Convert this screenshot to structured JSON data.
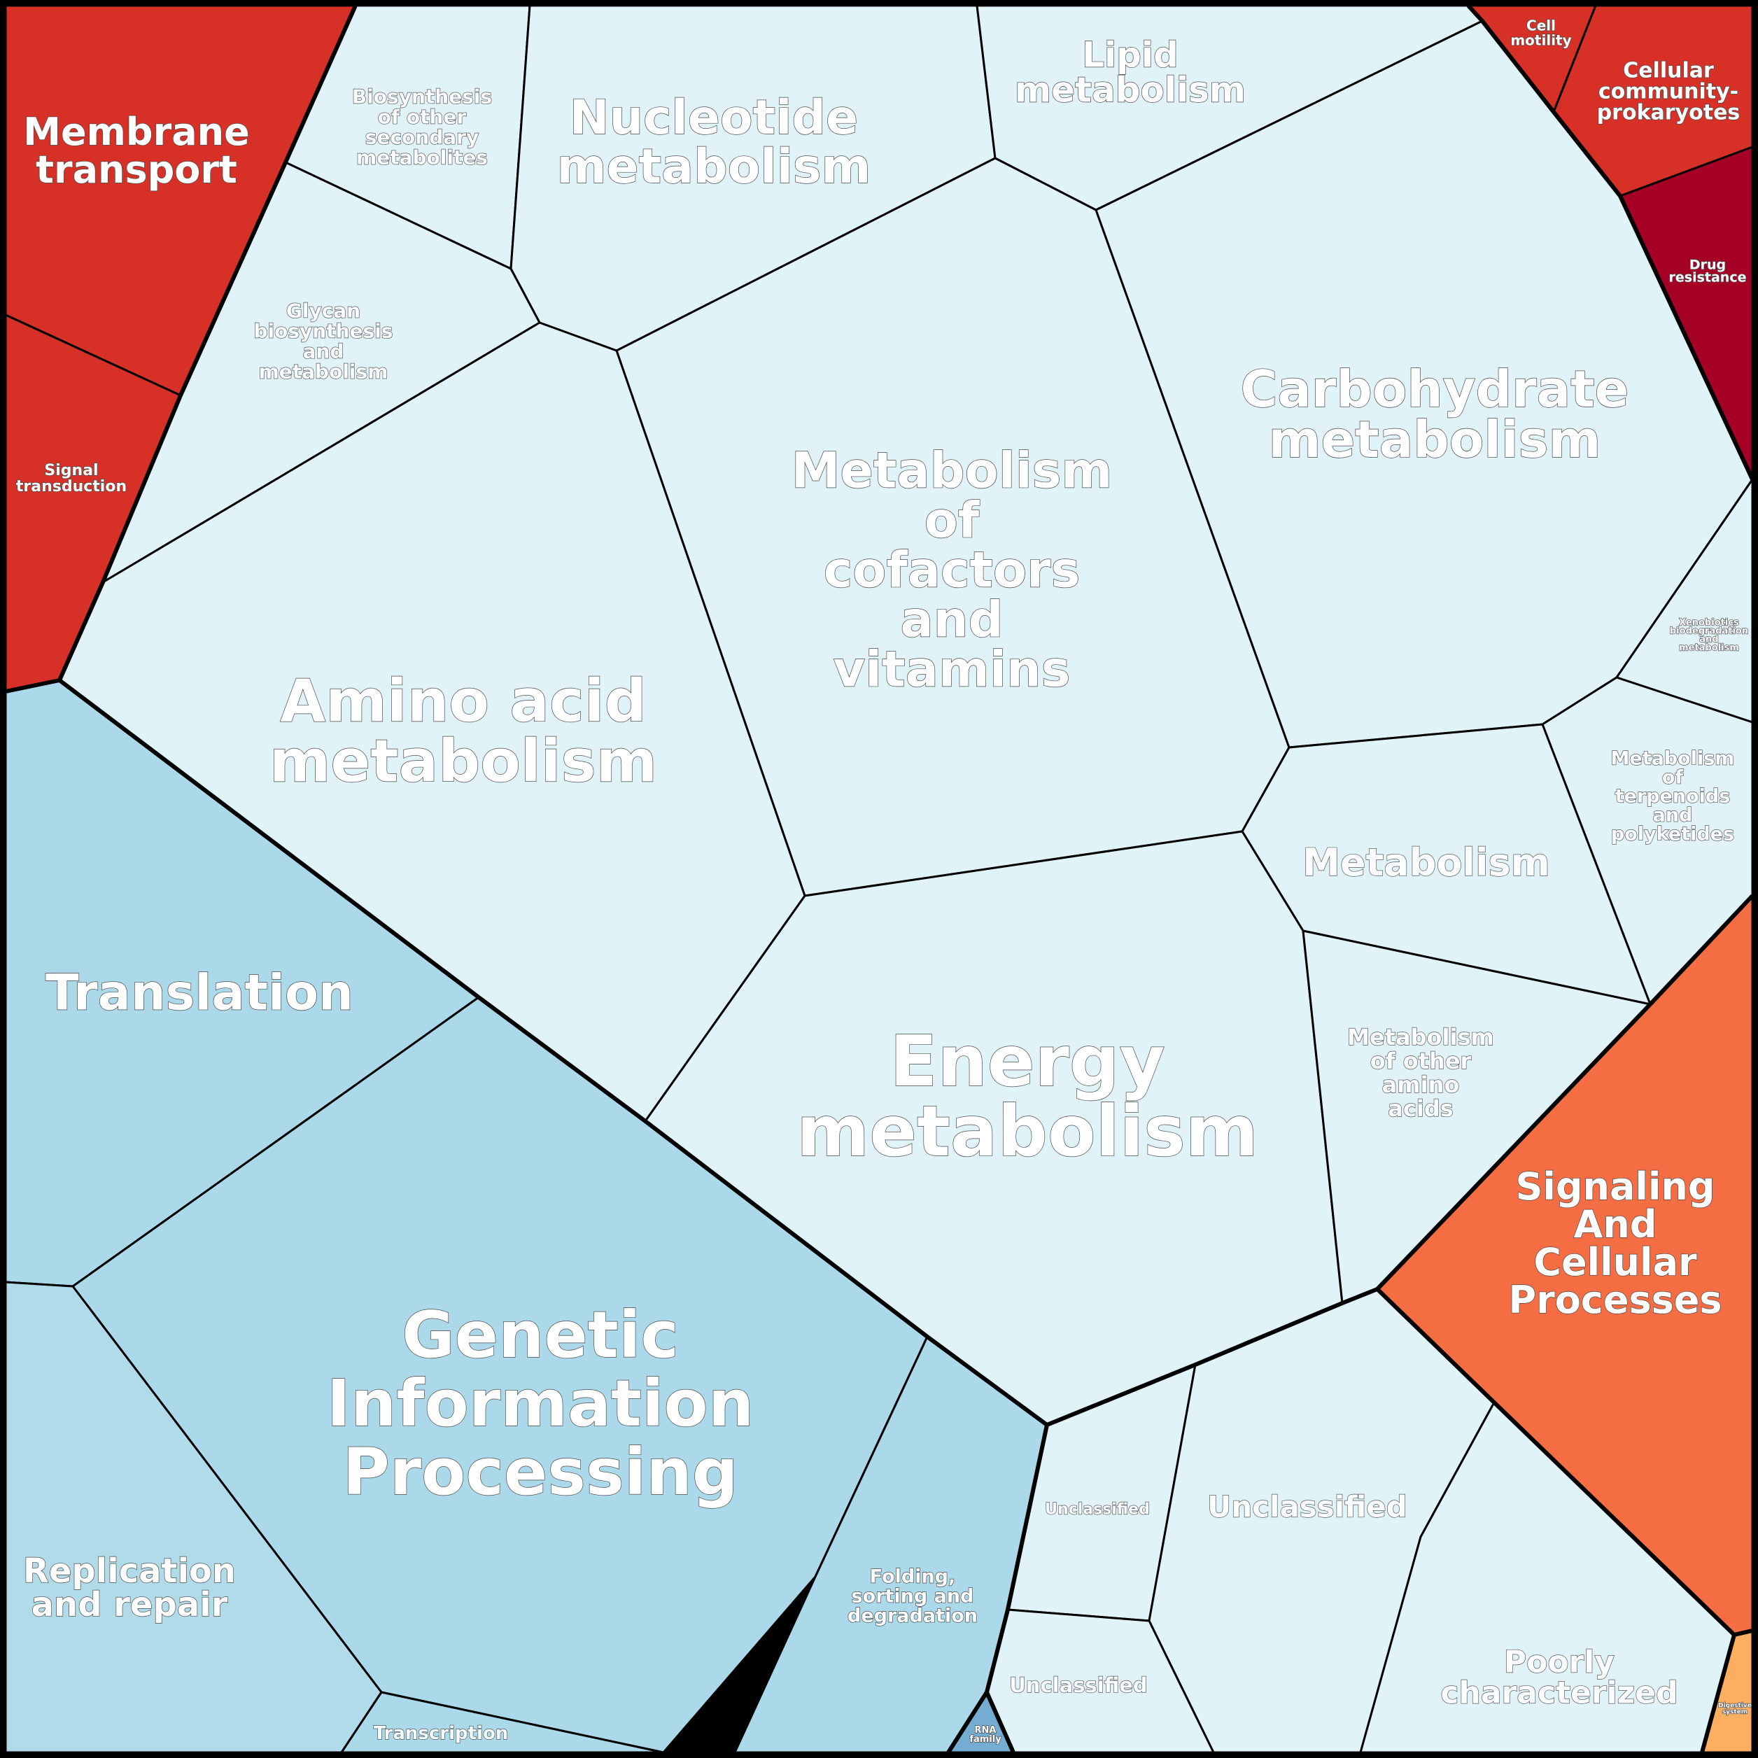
{
  "colors": {
    "metabolism": "#e0f3f8",
    "genetic": "#abd9e9",
    "genetic_light": "#b2dbe9",
    "environmental": "#d73027",
    "environmental_dark": "#a50026",
    "cellular": "#f46d43",
    "organismal": "#fdae61",
    "rna_family": "#74add1",
    "unclassified": "#e0f3f8"
  },
  "labels": {
    "membrane_transport": [
      "Membrane",
      "transport"
    ],
    "signal_transduction": [
      "Signal",
      "transduction"
    ],
    "biosynthesis_secondary": [
      "Biosynthesis",
      "of other",
      "secondary",
      "metabolites"
    ],
    "nucleotide": [
      "Nucleotide",
      "metabolism"
    ],
    "lipid": [
      "Lipid",
      "metabolism"
    ],
    "cell_motility": [
      "Cell",
      "motility"
    ],
    "cellular_community": [
      "Cellular",
      "community-",
      "prokaryotes"
    ],
    "drug_resistance": [
      "Drug",
      "resistance"
    ],
    "glycan": [
      "Glycan",
      "biosynthesis",
      "and",
      "metabolism"
    ],
    "cofactors": [
      "Metabolism",
      "of",
      "cofactors",
      "and",
      "vitamins"
    ],
    "carbohydrate": [
      "Carbohydrate",
      "metabolism"
    ],
    "xenobiotics": [
      "Xenobiotics",
      "biodegradation",
      "and",
      "metabolism"
    ],
    "amino_acid": [
      "Amino acid",
      "metabolism"
    ],
    "terpenoids": [
      "Metabolism",
      "of",
      "terpenoids",
      "and",
      "polyketides"
    ],
    "metabolism": [
      "Metabolism"
    ],
    "translation": [
      "Translation"
    ],
    "energy": [
      "Energy",
      "metabolism"
    ],
    "other_amino": [
      "Metabolism",
      "of other",
      "amino",
      "acids"
    ],
    "signaling_cellular": [
      "Signaling",
      "And",
      "Cellular",
      "Processes"
    ],
    "genetic_info": [
      "Genetic",
      "Information",
      "Processing"
    ],
    "unclassified_small": [
      "Unclassified"
    ],
    "unclassified_big": [
      "Unclassified"
    ],
    "unclassified_bottom": [
      "Unclassified"
    ],
    "replication": [
      "Replication",
      "and repair"
    ],
    "folding": [
      "Folding,",
      "sorting and",
      "degradation"
    ],
    "poorly": [
      "Poorly",
      "characterized"
    ],
    "transcription": [
      "Transcription"
    ],
    "rna_family": [
      "RNA",
      "family"
    ],
    "digestive": [
      "Digestive",
      "system"
    ]
  }
}
